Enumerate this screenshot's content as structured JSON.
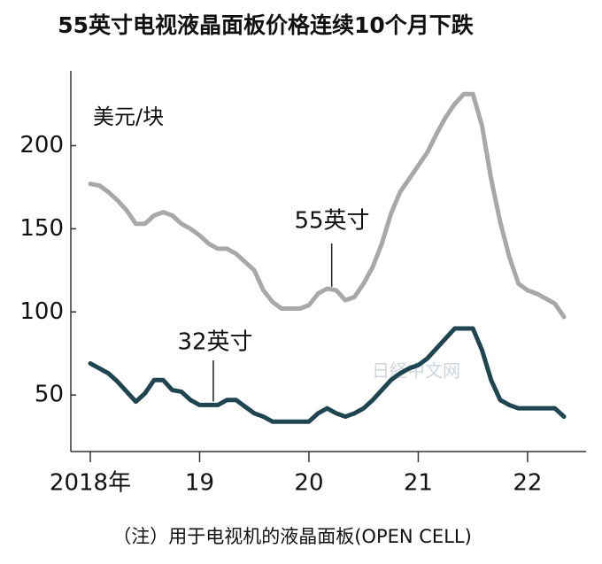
{
  "chart_data": {
    "type": "line",
    "title": "55英寸电视液晶面板价格连续10个月下跌",
    "y_label": "美元/块",
    "note": "（注）用于电视机的液晶面板(OPEN CELL)",
    "watermark": "日経中文网",
    "categories": [
      "2018年",
      null,
      null,
      null,
      null,
      null,
      null,
      null,
      null,
      null,
      null,
      null,
      "19",
      null,
      null,
      null,
      null,
      null,
      null,
      null,
      null,
      null,
      null,
      null,
      "20",
      null,
      null,
      null,
      null,
      null,
      null,
      null,
      null,
      null,
      null,
      null,
      "21",
      null,
      null,
      null,
      null,
      null,
      null,
      null,
      null,
      null,
      null,
      null,
      "22",
      null,
      null,
      null,
      null
    ],
    "series": [
      {
        "name": "55英寸",
        "color": "#a8a8a8",
        "values": [
          177,
          176,
          172,
          167,
          161,
          153,
          153,
          158,
          160,
          158,
          153,
          150,
          146,
          141,
          138,
          138,
          135,
          130,
          125,
          113,
          106,
          102,
          102,
          102,
          104,
          111,
          114,
          113,
          107,
          109,
          117,
          127,
          141,
          159,
          172,
          180,
          188,
          196,
          207,
          217,
          225,
          231,
          231,
          212,
          180,
          154,
          133,
          117,
          113,
          111,
          108,
          105,
          97
        ]
      },
      {
        "name": "32英寸",
        "color": "#1f4550",
        "values": [
          69,
          66,
          63,
          58,
          52,
          46,
          51,
          59,
          59,
          53,
          52,
          47,
          44,
          44,
          44,
          47,
          47,
          43,
          39,
          37,
          34,
          34,
          34,
          34,
          34,
          39,
          42,
          39,
          37,
          39,
          42,
          47,
          53,
          59,
          63,
          66,
          68,
          72,
          78,
          84,
          90,
          90,
          90,
          77,
          59,
          47,
          44,
          42,
          42,
          42,
          42,
          42,
          37
        ]
      }
    ],
    "ylim": [
      16,
      245
    ],
    "yticks": [
      50,
      100,
      150,
      200
    ]
  }
}
